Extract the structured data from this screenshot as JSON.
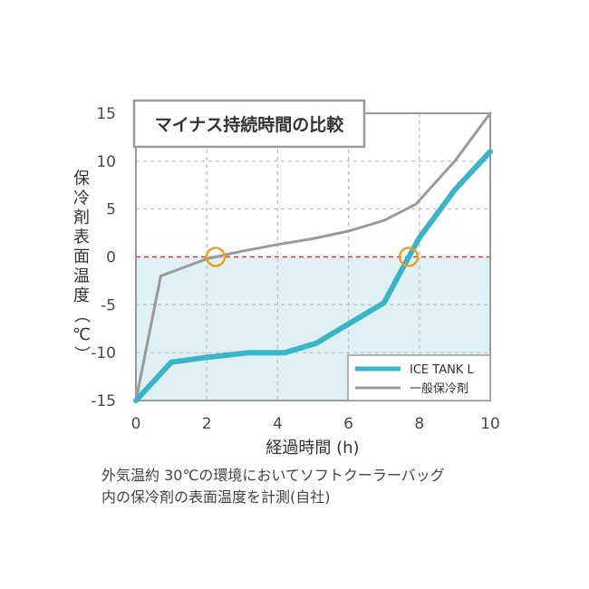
{
  "chart_data": {
    "type": "line",
    "title": "マイナス持続時間の比較",
    "xlabel": "経過時間 (h)",
    "ylabel": "保冷剤表面温度（℃）",
    "xlim": [
      0,
      10
    ],
    "ylim": [
      -15,
      15
    ],
    "x_ticks": [
      "0",
      "2",
      "4",
      "6",
      "8",
      "10"
    ],
    "y_ticks": [
      "15",
      "10",
      "5",
      "0",
      "-5",
      "-10",
      "-15"
    ],
    "grid": true,
    "legend_position": "bottom-right",
    "reference_line": {
      "y": 0,
      "color": "#e03030",
      "style": "dashed"
    },
    "shaded_region": {
      "y_from": -15,
      "y_to": 0,
      "color": "#dff1f4"
    },
    "series": [
      {
        "name": "ICE TANK L",
        "color": "#3ab5c8",
        "points": [
          [
            0,
            -15
          ],
          [
            1,
            -11
          ],
          [
            2,
            -10.5
          ],
          [
            3.2,
            -10
          ],
          [
            4.2,
            -10
          ],
          [
            5.1,
            -9
          ],
          [
            6,
            -7
          ],
          [
            7,
            -4.8
          ],
          [
            7.7,
            0
          ],
          [
            8,
            2
          ],
          [
            9,
            7
          ],
          [
            10,
            11
          ]
        ]
      },
      {
        "name": "一般保冷剤",
        "color": "#9a9a9a",
        "points": [
          [
            0,
            -15
          ],
          [
            0.7,
            -2
          ],
          [
            2,
            -0.2
          ],
          [
            3,
            0.6
          ],
          [
            4,
            1.3
          ],
          [
            5,
            1.9
          ],
          [
            6,
            2.7
          ],
          [
            7,
            3.8
          ],
          [
            7.9,
            5.5
          ],
          [
            9,
            10
          ],
          [
            10,
            15
          ]
        ]
      }
    ],
    "crossing_markers": [
      {
        "x": 2.25,
        "y": 0,
        "color": "#f0a020"
      },
      {
        "x": 7.7,
        "y": 0,
        "color": "#f0a020"
      }
    ]
  },
  "caption": {
    "line1": "外気温約 30℃の環境においてソフトクーラーバッグ",
    "line2": "内の保冷剤の表面温度を計測(自社)"
  }
}
